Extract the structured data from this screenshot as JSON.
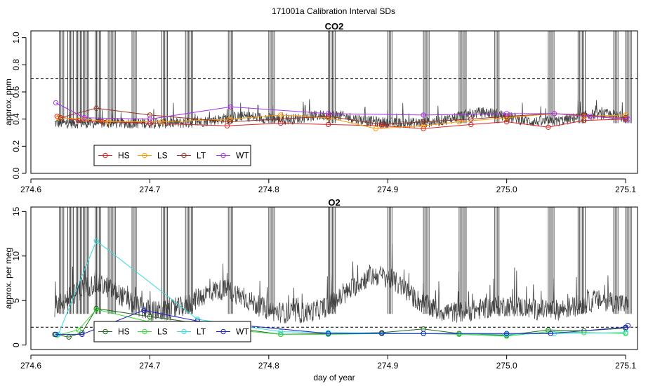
{
  "figure_title": "171001a   Calibration Interval SDs",
  "chart_data": [
    {
      "type": "line",
      "title": "CO2",
      "xlabel": "",
      "ylabel": "approx. ppm",
      "xlim": [
        274.6,
        275.11
      ],
      "ylim": [
        0.0,
        1.05
      ],
      "xticks": [
        274.6,
        274.7,
        274.8,
        274.9,
        275.0,
        275.1
      ],
      "xtick_labels": [
        "274.6",
        "274.7",
        "274.8",
        "274.9",
        "275.0",
        "275.1"
      ],
      "yticks": [
        0.0,
        0.2,
        0.4,
        0.6,
        0.8,
        1.0
      ],
      "ytick_labels": [
        "0.0",
        "0.2",
        "0.4",
        "0.6",
        "0.8",
        "1.0"
      ],
      "threshold": 0.7,
      "grid": false,
      "legend_position": "bottom-left",
      "background_trace": {
        "name": "raw SD",
        "color": "#444444",
        "baseline": 0.37,
        "noise": 0.04,
        "bumps": [
          [
            274.78,
            0.45
          ],
          [
            274.85,
            0.47
          ],
          [
            274.98,
            0.5
          ],
          [
            275.08,
            0.48
          ]
        ],
        "spike_clusters": [
          274.624,
          274.631,
          274.638,
          274.645,
          274.654,
          274.665,
          274.685,
          274.71,
          274.73,
          274.766,
          274.8,
          274.85,
          274.9,
          274.93,
          274.96,
          274.99,
          275.035,
          275.06,
          275.09,
          275.1
        ]
      },
      "series": [
        {
          "name": "HS",
          "color": "#dd2222",
          "x": [
            274.622,
            274.64,
            274.66,
            274.7,
            274.765,
            274.81,
            274.85,
            274.895,
            274.93,
            274.97,
            275.0,
            275.035,
            275.065,
            275.1
          ],
          "y": [
            0.42,
            0.39,
            0.38,
            0.37,
            0.35,
            0.37,
            0.36,
            0.35,
            0.33,
            0.36,
            0.38,
            0.34,
            0.39,
            0.4
          ]
        },
        {
          "name": "LS",
          "color": "#ff9900",
          "x": [
            274.623,
            274.645,
            274.665,
            274.71,
            274.767,
            274.81,
            274.85,
            274.89,
            274.93,
            274.96,
            275.0,
            275.04,
            275.065,
            275.1
          ],
          "y": [
            0.41,
            0.4,
            0.38,
            0.38,
            0.4,
            0.43,
            0.41,
            0.33,
            0.35,
            0.38,
            0.41,
            0.44,
            0.42,
            0.43
          ]
        },
        {
          "name": "LT",
          "color": "#993322",
          "x": [
            274.625,
            274.655,
            274.7,
            274.767,
            274.85,
            274.895,
            274.93,
            274.97,
            275.0,
            275.04,
            275.065,
            275.1
          ],
          "y": [
            0.41,
            0.48,
            0.43,
            0.38,
            0.42,
            0.36,
            0.38,
            0.4,
            0.42,
            0.44,
            0.43,
            0.41
          ]
        },
        {
          "name": "WT",
          "color": "#aa33ee",
          "x": [
            274.621,
            274.645,
            274.7,
            274.768,
            274.85,
            274.93,
            275.0,
            275.04,
            275.07,
            275.102
          ],
          "y": [
            0.52,
            0.41,
            0.4,
            0.49,
            0.44,
            0.43,
            0.44,
            0.44,
            0.42,
            0.4
          ]
        }
      ]
    },
    {
      "type": "line",
      "title": "O2",
      "xlabel": "day of year",
      "ylabel": "approx. per meg",
      "xlim": [
        274.6,
        275.11
      ],
      "ylim": [
        -0.5,
        15.5
      ],
      "xticks": [
        274.6,
        274.7,
        274.8,
        274.9,
        275.0,
        275.1
      ],
      "xtick_labels": [
        "274.6",
        "274.7",
        "274.8",
        "274.9",
        "275.0",
        "275.1"
      ],
      "yticks": [
        0,
        5,
        10,
        15
      ],
      "ytick_labels": [
        "0",
        "5",
        "10",
        "15"
      ],
      "threshold": 2.0,
      "grid": false,
      "legend_position": "bottom-left",
      "background_trace": {
        "name": "raw SD",
        "color": "#444444",
        "baseline": 3.5,
        "noise": 1.2,
        "bumps": [
          [
            274.655,
            9.0
          ],
          [
            274.76,
            8.0
          ],
          [
            274.88,
            7.0
          ],
          [
            274.9,
            8.0
          ],
          [
            275.0,
            5.0
          ],
          [
            275.08,
            6.0
          ]
        ],
        "spike_clusters": [
          274.624,
          274.631,
          274.638,
          274.645,
          274.654,
          274.665,
          274.685,
          274.71,
          274.73,
          274.766,
          274.8,
          274.85,
          274.9,
          274.93,
          274.96,
          274.99,
          275.035,
          275.06,
          275.09,
          275.1
        ]
      },
      "series": [
        {
          "name": "HS",
          "color": "#226622",
          "x": [
            274.62,
            274.632,
            274.643,
            274.655,
            274.7,
            274.81,
            274.85,
            274.895,
            274.93,
            274.96,
            275.0,
            275.035,
            275.065,
            275.1
          ],
          "y": [
            1.2,
            0.9,
            1.4,
            4.1,
            3.2,
            1.2,
            1.3,
            1.4,
            1.8,
            1.3,
            1.1,
            1.7,
            1.6,
            1.9
          ]
        },
        {
          "name": "LS",
          "color": "#33dd33",
          "x": [
            274.622,
            274.64,
            274.655,
            274.7,
            274.81,
            274.85,
            274.895,
            274.93,
            274.96,
            275.0,
            275.035,
            275.065,
            275.1
          ],
          "y": [
            1.1,
            1.7,
            4.0,
            2.6,
            1.2,
            1.2,
            1.3,
            1.3,
            1.2,
            1.0,
            1.5,
            1.4,
            1.3
          ]
        },
        {
          "name": "LT",
          "color": "#33dddd",
          "x": [
            274.623,
            274.655,
            274.74,
            274.81,
            274.85,
            274.93,
            275.0,
            275.04,
            275.1
          ],
          "y": [
            1.2,
            11.7,
            2.9,
            1.5,
            1.4,
            1.3,
            1.2,
            1.3,
            1.4
          ]
        },
        {
          "name": "WT",
          "color": "#2222cc",
          "x": [
            274.621,
            274.643,
            274.695,
            274.74,
            274.85,
            274.895,
            274.93,
            275.0,
            275.037,
            275.1,
            275.102
          ],
          "y": [
            1.2,
            1.2,
            3.9,
            2.7,
            1.3,
            1.3,
            1.3,
            1.3,
            1.3,
            2.0,
            2.2
          ]
        }
      ]
    }
  ]
}
